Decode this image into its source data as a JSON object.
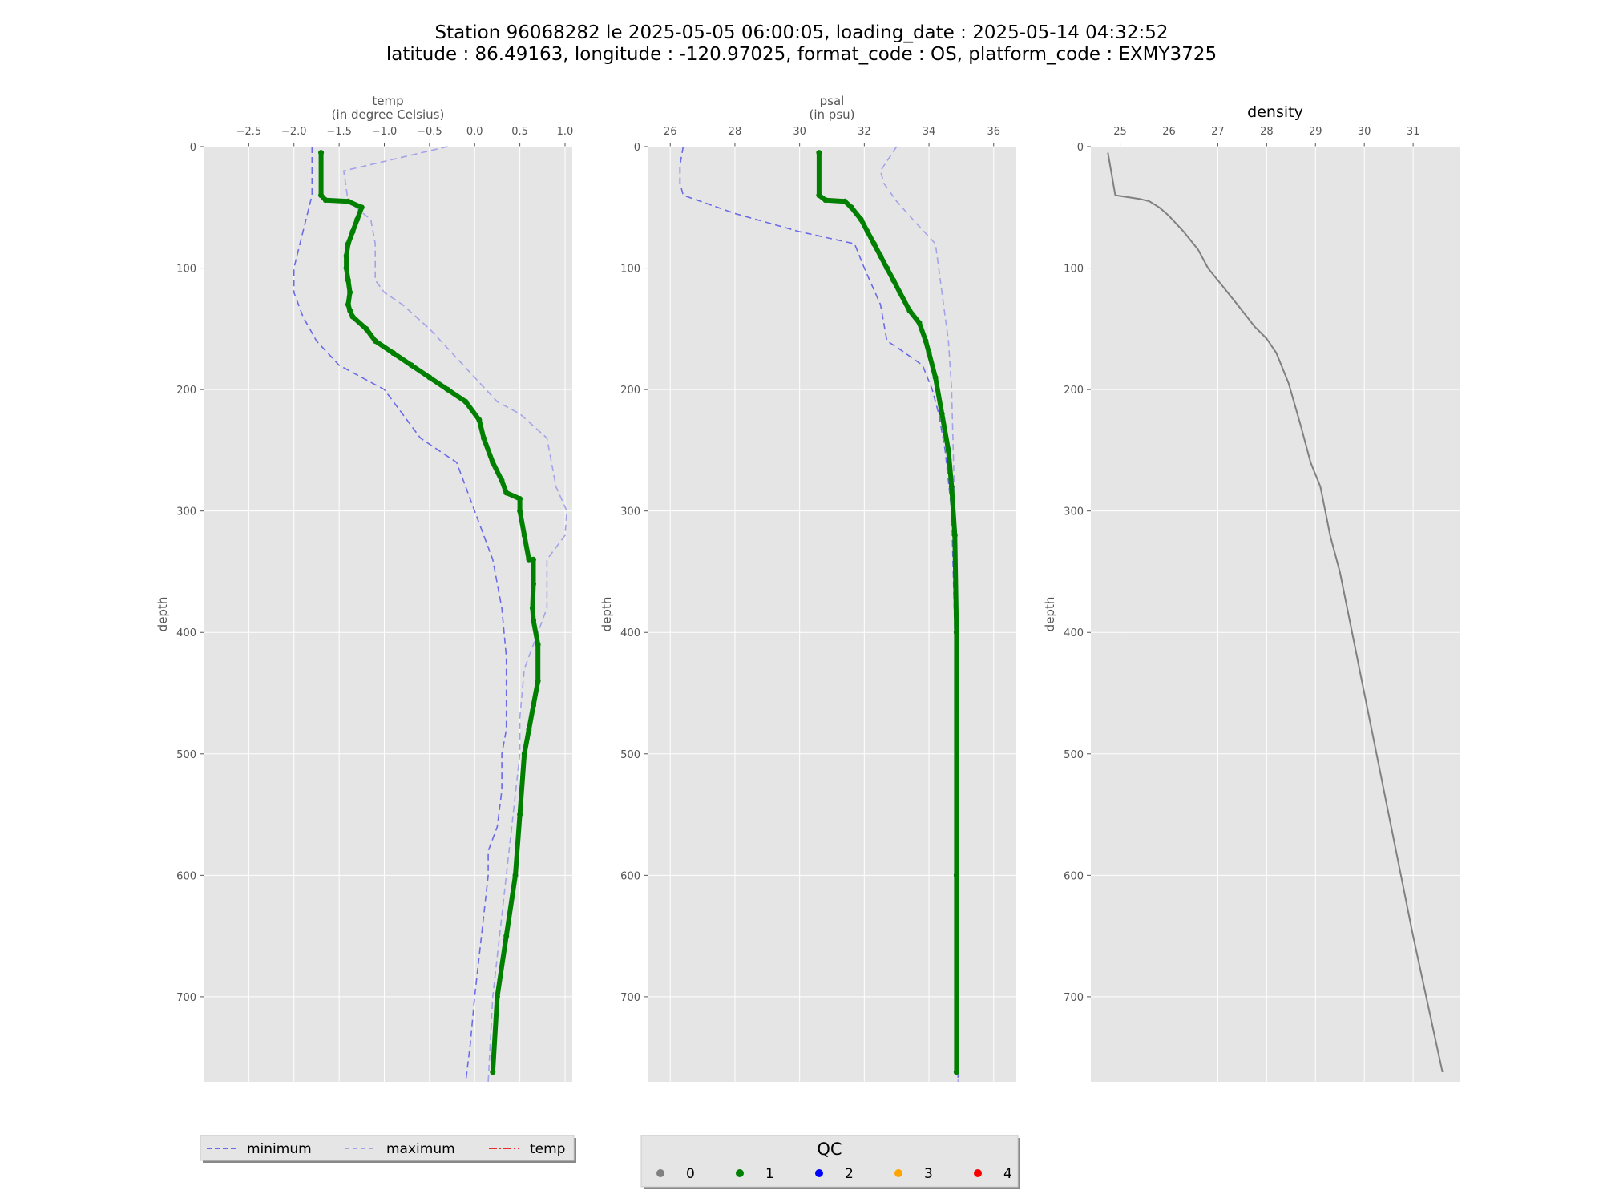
{
  "figure": {
    "title_line1": "Station 96068282 le 2025-05-05 06:00:05, loading_date : 2025-05-14 04:32:52",
    "title_line2": "latitude : 86.49163, longitude : -120.97025, format_code : OS, platform_code : EXMY3725"
  },
  "colors": {
    "panel_bg": "#e5e5e5",
    "grid": "#ffffff",
    "minimum": "#6b6be8",
    "maximum": "#a3a3ea",
    "profile_qc1": "#007f00",
    "density": "#808080",
    "qc0": "#808080",
    "qc1": "#008000",
    "qc2": "#0000ff",
    "qc3": "#ffa500",
    "qc4": "#ff0000",
    "temp_legend": "#e8302a"
  },
  "legend_lines": {
    "items": [
      {
        "label": "minimum",
        "style": "dashed",
        "color": "#6b6be8"
      },
      {
        "label": "maximum",
        "style": "dashed",
        "color": "#a3a3ea"
      },
      {
        "label": "temp",
        "style": "dashdot",
        "color": "#e8302a"
      }
    ]
  },
  "legend_qc": {
    "title": "QC",
    "items": [
      {
        "label": "0",
        "color": "#808080"
      },
      {
        "label": "1",
        "color": "#008000"
      },
      {
        "label": "2",
        "color": "#0000ff"
      },
      {
        "label": "3",
        "color": "#ffa500"
      },
      {
        "label": "4",
        "color": "#ff0000"
      }
    ]
  },
  "chart_data": [
    {
      "type": "line",
      "title": "",
      "xlabel": "temp",
      "xlabel_sub": "(in degree Celsius)",
      "ylabel": "depth",
      "xlim": [
        -3.0,
        1.08
      ],
      "ylim": [
        770,
        0
      ],
      "xticks": [
        -2.5,
        -2.0,
        -1.5,
        -1.0,
        -0.5,
        0.0,
        0.5,
        1.0
      ],
      "xtick_labels": [
        "−2.5",
        "−2.0",
        "−1.5",
        "−1.0",
        "−0.5",
        "0.0",
        "0.5",
        "1.0"
      ],
      "yticks": [
        0,
        100,
        200,
        300,
        400,
        500,
        600,
        700
      ],
      "ytick_labels": [
        "0",
        "100",
        "200",
        "300",
        "400",
        "500",
        "600",
        "700"
      ],
      "grid": true,
      "series": [
        {
          "name": "minimum",
          "style": "dashed",
          "color": "#6b6be8",
          "x": [
            -1.8,
            -1.8,
            -1.9,
            -2.0,
            -2.0,
            -1.9,
            -1.75,
            -1.5,
            -1.0,
            -0.6,
            -0.2,
            -0.1,
            0.0,
            0.1,
            0.2,
            0.3,
            0.35,
            0.35,
            0.3,
            0.3,
            0.25,
            0.15,
            0.15,
            0.0,
            -0.05,
            -0.1
          ],
          "y": [
            0,
            40,
            70,
            100,
            120,
            140,
            160,
            180,
            200,
            240,
            260,
            280,
            300,
            320,
            340,
            380,
            420,
            480,
            500,
            530,
            560,
            580,
            600,
            700,
            740,
            770
          ]
        },
        {
          "name": "maximum",
          "style": "dashed",
          "color": "#a3a3ea",
          "x": [
            -0.3,
            -1.45,
            -1.4,
            -1.15,
            -1.1,
            -1.1,
            -1.1,
            -1.0,
            -0.8,
            -0.5,
            -0.25,
            0.0,
            0.25,
            0.5,
            0.8,
            0.9,
            1.02,
            1.0,
            0.8,
            0.8,
            0.7,
            0.55,
            0.5,
            0.5,
            0.35,
            0.2,
            0.15
          ],
          "y": [
            0,
            20,
            45,
            60,
            80,
            100,
            110,
            120,
            130,
            150,
            170,
            190,
            210,
            220,
            240,
            280,
            300,
            320,
            340,
            380,
            400,
            430,
            470,
            500,
            600,
            700,
            770
          ]
        },
        {
          "name": "temp",
          "style": "solid",
          "color": "#007f00",
          "qc": 1,
          "x": [
            -1.7,
            -1.7,
            -1.65,
            -1.4,
            -1.25,
            -1.3,
            -1.35,
            -1.4,
            -1.42,
            -1.42,
            -1.4,
            -1.38,
            -1.4,
            -1.38,
            -1.35,
            -1.2,
            -1.1,
            -0.9,
            -0.7,
            -0.5,
            -0.3,
            -0.1,
            0.05,
            0.1,
            0.2,
            0.3,
            0.35,
            0.5,
            0.5,
            0.55,
            0.6,
            0.65,
            0.65,
            0.64,
            0.65,
            0.7,
            0.7,
            0.65,
            0.6,
            0.55,
            0.5,
            0.45,
            0.35,
            0.25,
            0.2
          ],
          "y": [
            5,
            40,
            44,
            45,
            50,
            60,
            70,
            80,
            90,
            100,
            110,
            120,
            130,
            135,
            140,
            150,
            160,
            170,
            180,
            190,
            200,
            210,
            225,
            240,
            260,
            275,
            285,
            290,
            300,
            320,
            340,
            340,
            360,
            380,
            390,
            410,
            440,
            460,
            480,
            500,
            550,
            600,
            650,
            700,
            762
          ]
        }
      ]
    },
    {
      "type": "line",
      "title": "",
      "xlabel": "psal",
      "xlabel_sub": "(in psu)",
      "ylabel": "depth",
      "xlim": [
        25.3,
        36.7
      ],
      "ylim": [
        770,
        0
      ],
      "xticks": [
        26,
        28,
        30,
        32,
        34,
        36
      ],
      "xtick_labels": [
        "26",
        "28",
        "30",
        "32",
        "34",
        "36"
      ],
      "yticks": [
        0,
        100,
        200,
        300,
        400,
        500,
        600,
        700
      ],
      "ytick_labels": [
        "0",
        "100",
        "200",
        "300",
        "400",
        "500",
        "600",
        "700"
      ],
      "grid": true,
      "series": [
        {
          "name": "minimum",
          "style": "dashed",
          "color": "#6b6be8",
          "x": [
            26.4,
            26.3,
            26.3,
            26.4,
            28.0,
            30.0,
            31.7,
            32.0,
            32.5,
            32.7,
            33.0,
            33.8,
            34.1,
            34.3,
            34.5,
            34.7,
            34.8,
            34.85,
            34.85,
            34.9
          ],
          "y": [
            0,
            15,
            30,
            40,
            55,
            70,
            80,
            100,
            130,
            160,
            165,
            180,
            200,
            220,
            250,
            300,
            400,
            500,
            700,
            770
          ]
        },
        {
          "name": "maximum",
          "style": "dashed",
          "color": "#a3a3ea",
          "x": [
            33.0,
            32.5,
            32.6,
            33.0,
            33.5,
            34.2,
            34.3,
            34.4,
            34.6,
            34.7,
            34.8,
            34.85,
            34.9
          ],
          "y": [
            0,
            20,
            30,
            45,
            60,
            80,
            100,
            120,
            160,
            200,
            300,
            500,
            770
          ]
        },
        {
          "name": "psal",
          "style": "solid",
          "color": "#007f00",
          "qc": 1,
          "x": [
            30.6,
            30.6,
            30.8,
            31.4,
            31.6,
            31.9,
            32.1,
            32.3,
            32.5,
            32.7,
            32.9,
            33.1,
            33.4,
            33.7,
            33.9,
            34.0,
            34.2,
            34.4,
            34.6,
            34.7,
            34.8,
            34.85,
            34.85,
            34.85
          ],
          "y": [
            5,
            40,
            44,
            45,
            50,
            60,
            70,
            80,
            90,
            100,
            110,
            120,
            135,
            145,
            160,
            170,
            190,
            220,
            250,
            280,
            320,
            400,
            600,
            762
          ]
        }
      ]
    },
    {
      "type": "line",
      "title": "density",
      "xlabel": "",
      "ylabel": "depth",
      "xlim": [
        24.4,
        31.95
      ],
      "ylim": [
        770,
        0
      ],
      "xticks": [
        25,
        26,
        27,
        28,
        29,
        30,
        31
      ],
      "xtick_labels": [
        "25",
        "26",
        "27",
        "28",
        "29",
        "30",
        "31"
      ],
      "yticks": [
        0,
        100,
        200,
        300,
        400,
        500,
        600,
        700
      ],
      "ytick_labels": [
        "0",
        "100",
        "200",
        "300",
        "400",
        "500",
        "600",
        "700"
      ],
      "grid": true,
      "series": [
        {
          "name": "density",
          "style": "solid",
          "color": "#808080",
          "x": [
            24.75,
            24.9,
            25.4,
            25.6,
            25.8,
            26.0,
            26.3,
            26.6,
            26.8,
            27.1,
            27.4,
            27.75,
            28.0,
            28.2,
            28.45,
            28.7,
            28.9,
            29.0,
            29.1,
            29.2,
            29.3,
            29.5,
            30.0,
            30.5,
            31.0,
            31.6
          ],
          "y": [
            5,
            40,
            43,
            45,
            50,
            57,
            70,
            85,
            100,
            115,
            130,
            148,
            158,
            170,
            195,
            230,
            260,
            270,
            280,
            300,
            320,
            350,
            450,
            550,
            650,
            762
          ]
        }
      ]
    }
  ]
}
